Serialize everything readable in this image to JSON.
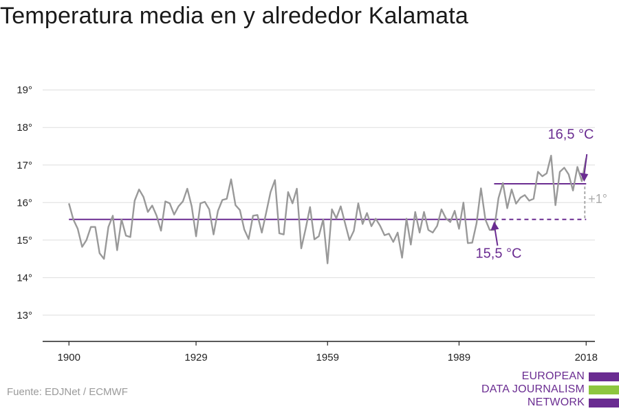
{
  "chart_data": {
    "type": "line",
    "title": "Temperatura media en y alrededor Kalamata",
    "xlabel": "",
    "ylabel": "",
    "xlim": [
      1894,
      2020
    ],
    "ylim": [
      12.3,
      19.6
    ],
    "grid": true,
    "x_ticks": [
      1900,
      1929,
      1959,
      1989,
      2018
    ],
    "y_ticks": [
      13,
      14,
      15,
      16,
      17,
      18,
      19
    ],
    "y_tick_labels": [
      "13°",
      "14°",
      "15°",
      "16°",
      "17°",
      "18°",
      "19°"
    ],
    "series": [
      {
        "x": [
          1900,
          1901,
          1902,
          1903,
          1904,
          1905,
          1906,
          1907,
          1908,
          1909,
          1910,
          1911,
          1912,
          1913,
          1914,
          1915,
          1916,
          1917,
          1918,
          1919,
          1920,
          1921,
          1922,
          1923,
          1924,
          1925,
          1926,
          1927,
          1928,
          1929,
          1930,
          1931,
          1932,
          1933,
          1934,
          1935,
          1936,
          1937,
          1938,
          1939,
          1940,
          1941,
          1942,
          1943,
          1944,
          1945,
          1946,
          1947,
          1948,
          1949,
          1950,
          1951,
          1952,
          1953,
          1954,
          1955,
          1956,
          1957,
          1958,
          1959,
          1960,
          1961,
          1962,
          1963,
          1964,
          1965,
          1966,
          1967,
          1968,
          1969,
          1970,
          1971,
          1972,
          1973,
          1974,
          1975,
          1976,
          1977,
          1978,
          1979,
          1980,
          1981,
          1982,
          1983,
          1984,
          1985,
          1986,
          1987,
          1988,
          1989,
          1990,
          1991,
          1992,
          1993,
          1994,
          1995,
          1996,
          1997,
          1998,
          1999,
          2000,
          2001,
          2002,
          2003,
          2004,
          2005,
          2006,
          2007,
          2008,
          2009,
          2010,
          2011,
          2012,
          2013,
          2014,
          2015,
          2016,
          2017,
          2018
        ],
        "values": [
          15.98,
          15.55,
          15.3,
          14.82,
          15.0,
          15.35,
          15.35,
          14.65,
          14.5,
          15.35,
          15.65,
          14.73,
          15.55,
          15.12,
          15.08,
          16.05,
          16.35,
          16.15,
          15.75,
          15.92,
          15.65,
          15.25,
          16.03,
          15.98,
          15.68,
          15.9,
          16.03,
          16.37,
          15.9,
          15.1,
          15.98,
          16.02,
          15.82,
          15.15,
          15.78,
          16.07,
          16.1,
          16.62,
          15.93,
          15.8,
          15.28,
          15.03,
          15.65,
          15.67,
          15.2,
          15.73,
          16.28,
          16.6,
          15.18,
          15.15,
          16.28,
          15.98,
          16.37,
          14.78,
          15.3,
          15.88,
          15.02,
          15.1,
          15.55,
          14.38,
          15.82,
          15.58,
          15.9,
          15.45,
          15.0,
          15.25,
          15.98,
          15.43,
          15.72,
          15.37,
          15.57,
          15.38,
          15.13,
          15.17,
          14.95,
          15.2,
          14.53,
          15.57,
          14.88,
          15.75,
          15.2,
          15.75,
          15.27,
          15.2,
          15.38,
          15.82,
          15.58,
          15.48,
          15.78,
          15.3,
          16.0,
          14.92,
          14.93,
          15.45,
          16.38,
          15.55,
          15.27,
          15.27,
          16.12,
          16.52,
          15.85,
          16.35,
          15.97,
          16.13,
          16.2,
          16.05,
          16.1,
          16.82,
          16.7,
          16.78,
          17.25,
          15.93,
          16.82,
          16.93,
          16.75,
          16.32,
          16.95,
          16.57,
          17.18
        ]
      }
    ],
    "reference_lines": [
      {
        "value": 15.55,
        "from": 1900,
        "to": 1997,
        "style": "solid"
      },
      {
        "value": 15.55,
        "from": 1997,
        "to": 2018,
        "style": "dashed"
      },
      {
        "value": 16.5,
        "from": 1997,
        "to": 2018,
        "style": "solid"
      }
    ],
    "annotations": {
      "recent": {
        "text": "16,5 °C",
        "value": 16.5
      },
      "baseline": {
        "text": "15,5 °C",
        "value": 15.55
      },
      "delta": {
        "text": "+1°"
      }
    },
    "colors": {
      "line": "#999999",
      "accent": "#6a2c91",
      "grid": "#dddddd",
      "axis": "#222222",
      "delta": "#aaaaaa"
    }
  },
  "source": "Fuente: EDJNet / ECMWF",
  "logo": {
    "lines": [
      "EUROPEAN",
      "DATA JOURNALISM",
      "NETWORK"
    ],
    "colors": [
      "#6a2c91",
      "#8dc63f",
      "#6a2c91"
    ]
  }
}
